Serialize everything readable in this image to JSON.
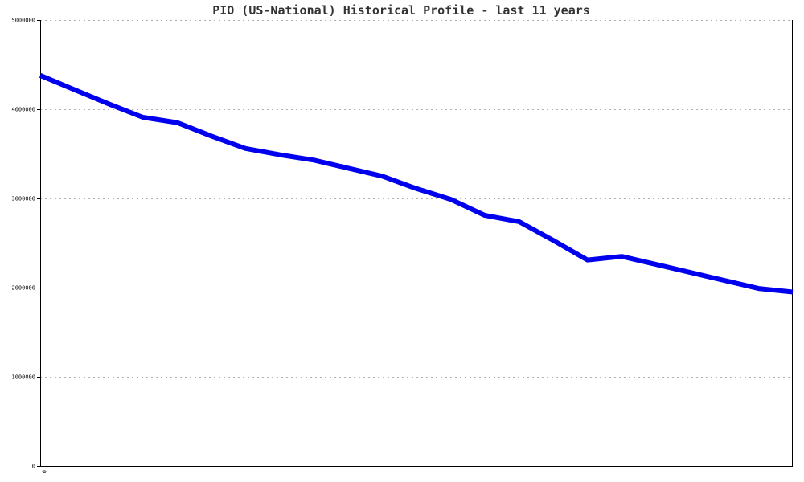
{
  "chart_data": {
    "type": "line",
    "title": "PIO (US-National) Historical Profile - last 11 years",
    "xlabel": "",
    "ylabel": "",
    "x_tick_labels": [
      "0"
    ],
    "ylim": [
      0,
      5000000
    ],
    "y_ticks": [
      0,
      1000000,
      2000000,
      3000000,
      4000000,
      5000000
    ],
    "y_tick_labels": [
      "0",
      "1000000",
      "2000000",
      "3000000",
      "4000000",
      "5000000"
    ],
    "grid": true,
    "series": [
      {
        "color": "#0000ee",
        "x": [
          0,
          1,
          2,
          3,
          4,
          5,
          6,
          7,
          8,
          9,
          10,
          11,
          12,
          13,
          14,
          15,
          16,
          17,
          18,
          19,
          20,
          21,
          22
        ],
        "values": [
          4380000,
          4220000,
          4060000,
          3910000,
          3850000,
          3700000,
          3560000,
          3490000,
          3430000,
          3340000,
          3250000,
          3110000,
          2990000,
          2810000,
          2740000,
          2530000,
          2310000,
          2350000,
          2260000,
          2170000,
          2080000,
          1990000,
          1950000
        ]
      }
    ]
  }
}
